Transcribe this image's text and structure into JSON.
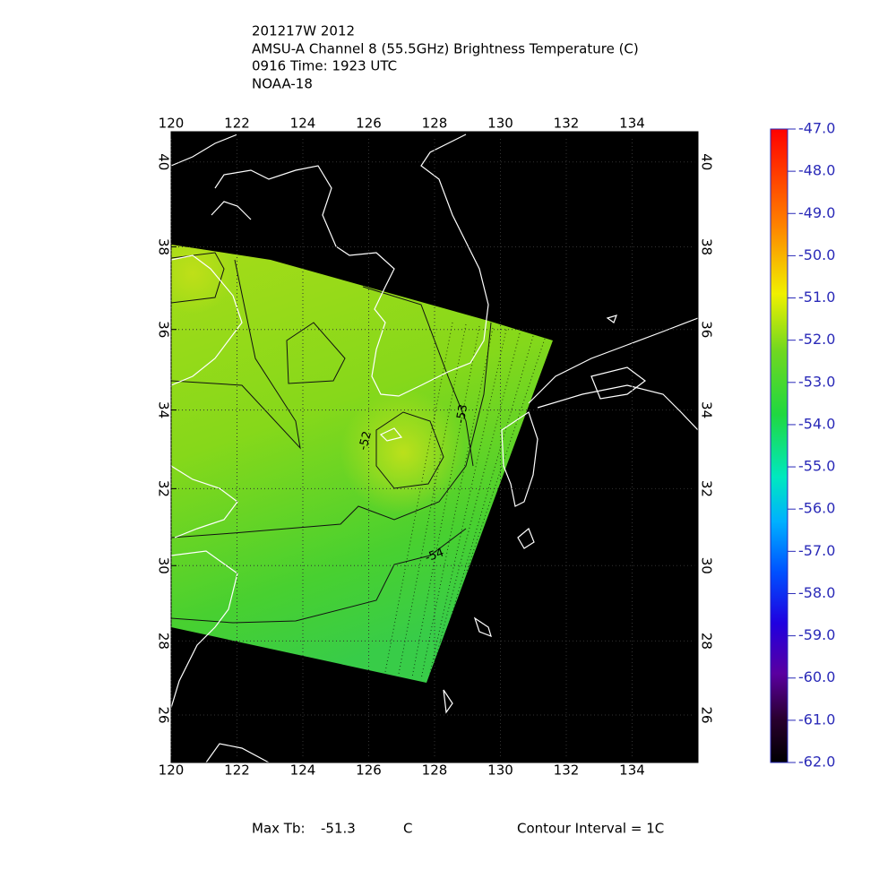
{
  "chart_data": {
    "type": "map",
    "title": [
      "201217W 2012",
      "AMSU-A Channel 8 (55.5GHz) Brightness Temperature (C)",
      "0916 Time: 1923 UTC",
      "NOAA-18"
    ],
    "projection": "mercator",
    "xlim": [
      120,
      136
    ],
    "xticks": [
      120,
      122,
      124,
      126,
      128,
      130,
      132,
      134
    ],
    "ylim": [
      24.7,
      40.7
    ],
    "yticks": [
      26,
      28,
      30,
      32,
      34,
      36,
      38,
      40
    ],
    "grid": true,
    "contour_labels": [
      -52,
      -53,
      -54
    ],
    "colorbar": {
      "lim": [
        -62,
        -47
      ],
      "ticks": [
        {
          "value": -47,
          "label": "-47.0"
        },
        {
          "value": -48,
          "label": "-48.0"
        },
        {
          "value": -49,
          "label": "-49.0"
        },
        {
          "value": -50,
          "label": "-50.0"
        },
        {
          "value": -51,
          "label": "-51.0"
        },
        {
          "value": -52,
          "label": "-52.0"
        },
        {
          "value": -53,
          "label": "-53.0"
        },
        {
          "value": -54,
          "label": "-54.0"
        },
        {
          "value": -55,
          "label": "-55.0"
        },
        {
          "value": -56,
          "label": "-56.0"
        },
        {
          "value": -57,
          "label": "-57.0"
        },
        {
          "value": -58,
          "label": "-58.0"
        },
        {
          "value": -59,
          "label": "-59.0"
        },
        {
          "value": -60,
          "label": "-60.0"
        },
        {
          "value": -61,
          "label": "-61.0"
        },
        {
          "value": -62,
          "label": "-62.0"
        }
      ],
      "label_color": "#2a2ab8"
    },
    "footer": {
      "max_tb_label": "Max Tb:",
      "max_tb": -51.3,
      "max_tb_unit": "C",
      "contour_interval": "Contour Interval = 1C"
    }
  }
}
